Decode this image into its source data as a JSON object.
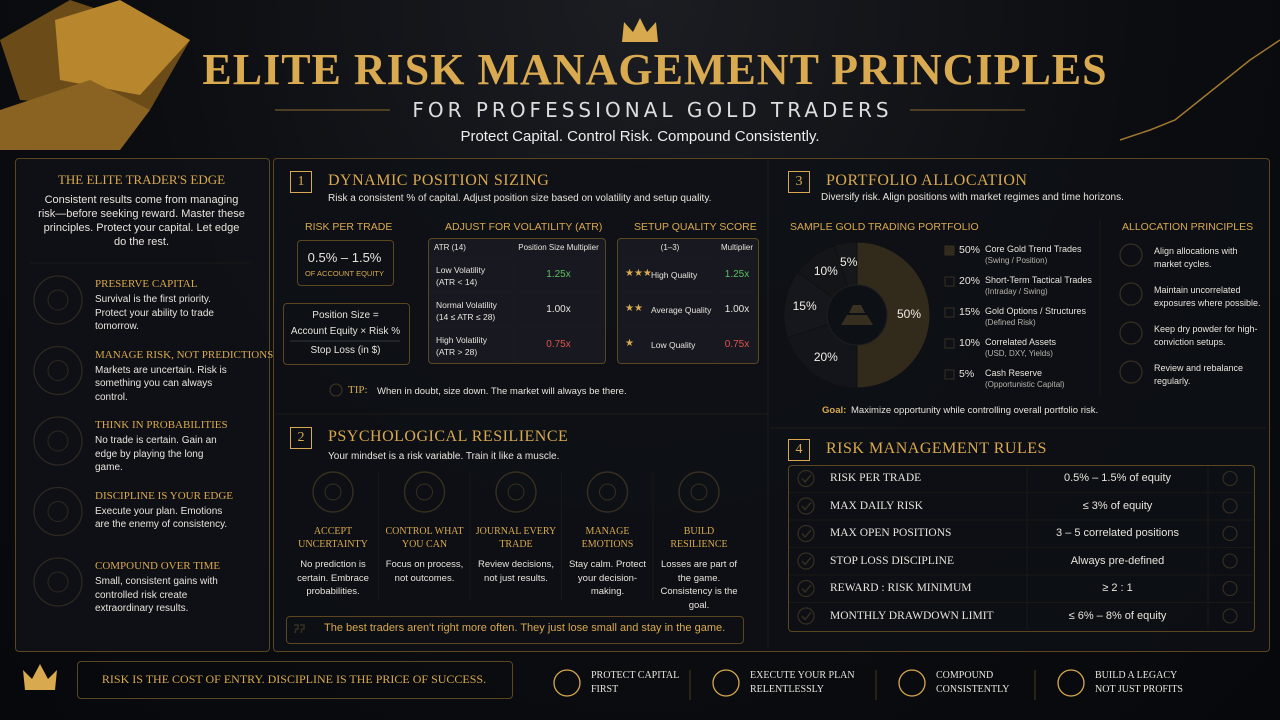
{
  "header": {
    "title": "ELITE RISK MANAGEMENT PRINCIPLES",
    "subtitle": "FOR PROFESSIONAL GOLD TRADERS",
    "tagline": "Protect Capital. Control Risk. Compound Consistently."
  },
  "edge": {
    "title": "THE ELITE TRADER'S EDGE",
    "intro": "Consistent results come from managing risk—before seeking reward. Master these principles. Protect your capital. Let edge do the rest.",
    "items": [
      {
        "title": "PRESERVE CAPITAL",
        "text": "Survival is the first priority. Protect your ability to trade tomorrow."
      },
      {
        "title": "MANAGE RISK, NOT PREDICTIONS",
        "text": "Markets are uncertain. Risk is something you can always control."
      },
      {
        "title": "THINK IN PROBABILITIES",
        "text": "No trade is certain. Gain an edge by playing the long game."
      },
      {
        "title": "DISCIPLINE IS YOUR EDGE",
        "text": "Execute your plan. Emotions are the enemy of consistency."
      },
      {
        "title": "COMPOUND OVER TIME",
        "text": "Small, consistent gains with controlled risk create extraordinary results."
      }
    ]
  },
  "sizing": {
    "number": "1",
    "title": "DYNAMIC POSITION SIZING",
    "subtitle": "Risk a consistent % of capital. Adjust position size based on volatility and setup quality.",
    "risk": {
      "heading": "RISK PER TRADE",
      "value": "0.5% – 1.5%",
      "unit": "OF ACCOUNT EQUITY"
    },
    "formula": {
      "lhs": "Position Size =",
      "numerator": "Account Equity × Risk %",
      "denominator": "Stop Loss (in $)"
    },
    "atr": {
      "heading": "ADJUST FOR VOLATILITY (ATR)",
      "columns": [
        "ATR (14)",
        "Position Size Multiplier"
      ],
      "rows": [
        [
          "Low Volatility",
          "(ATR < 14)",
          "1.25x"
        ],
        [
          "Normal Volatility",
          "(14 ≤ ATR ≤ 28)",
          "1.00x"
        ],
        [
          "High Volatility",
          "(ATR > 28)",
          "0.75x"
        ]
      ]
    },
    "quality": {
      "heading": "SETUP QUALITY SCORE",
      "columns": [
        "(1–3)",
        "Multiplier"
      ],
      "rows": [
        [
          "★★★",
          "High Quality",
          "1.25x"
        ],
        [
          "★★",
          "Average Quality",
          "1.00x"
        ],
        [
          "★",
          "Low Quality",
          "0.75x"
        ]
      ]
    },
    "tip": {
      "label": "TIP:",
      "text": "When in doubt, size down. The market will always be there."
    }
  },
  "psych": {
    "number": "2",
    "title": "PSYCHOLOGICAL RESILIENCE",
    "subtitle": "Your mindset is a risk variable. Train it like a muscle.",
    "items": [
      {
        "title": "ACCEPT UNCERTAINTY",
        "text": "No prediction is certain. Embrace probabilities."
      },
      {
        "title": "CONTROL WHAT YOU CAN",
        "text": "Focus on process, not outcomes."
      },
      {
        "title": "JOURNAL EVERY TRADE",
        "text": "Review decisions, not just results."
      },
      {
        "title": "MANAGE EMOTIONS",
        "text": "Stay calm. Protect your decision-making."
      },
      {
        "title": "BUILD RESILIENCE",
        "text": "Losses are part of the game. Consistency is the goal."
      }
    ],
    "quote": "The best traders aren't right more often. They just lose small and stay in the game."
  },
  "portfolio": {
    "number": "3",
    "title": "PORTFOLIO ALLOCATION",
    "subtitle": "Diversify risk. Align positions with market regimes and time horizons.",
    "chart_heading": "SAMPLE GOLD TRADING PORTFOLIO",
    "slices": [
      {
        "value": 50,
        "label": "50%",
        "name": "Core Gold Trend Trades",
        "note": "(Swing / Position)",
        "color": "#c48f35"
      },
      {
        "value": 20,
        "label": "20%",
        "name": "Short-Term Tactical Trades",
        "note": "(Intraday / Swing)",
        "color": "#2b2b2d"
      },
      {
        "value": 15,
        "label": "15%",
        "name": "Gold Options / Structures",
        "note": "(Defined Risk)",
        "color": "#353537"
      },
      {
        "value": 10,
        "label": "10%",
        "name": "Correlated Assets",
        "note": "(USD, DXY, Yields)",
        "color": "#28282a"
      },
      {
        "value": 5,
        "label": "5%",
        "name": "Cash Reserve",
        "note": "(Opportunistic Capital)",
        "color": "#323234"
      }
    ],
    "principles_heading": "ALLOCATION PRINCIPLES",
    "principles": [
      "Align allocations with market cycles.",
      "Maintain uncorrelated exposures where possible.",
      "Keep dry powder for high-conviction setups.",
      "Review and rebalance regularly."
    ],
    "goal_label": "Goal:",
    "goal": "Maximize opportunity while controlling overall portfolio risk."
  },
  "rules": {
    "number": "4",
    "title": "RISK MANAGEMENT RULES",
    "rows": [
      [
        "RISK PER TRADE",
        "0.5% – 1.5% of equity"
      ],
      [
        "MAX DAILY RISK",
        "≤ 3% of equity"
      ],
      [
        "MAX OPEN POSITIONS",
        "3 – 5 correlated positions"
      ],
      [
        "STOP LOSS DISCIPLINE",
        "Always pre-defined"
      ],
      [
        "REWARD : RISK MINIMUM",
        "≥ 2 : 1"
      ],
      [
        "MONTHLY DRAWDOWN LIMIT",
        "≤ 6% – 8% of equity"
      ]
    ]
  },
  "footer": {
    "motto": "RISK IS THE COST OF ENTRY.  DISCIPLINE IS THE PRICE OF SUCCESS.",
    "items": [
      [
        "PROTECT CAPITAL",
        "FIRST"
      ],
      [
        "EXECUTE YOUR PLAN",
        "RELENTLESSLY"
      ],
      [
        "COMPOUND",
        "CONSISTENTLY"
      ],
      [
        "BUILD A LEGACY",
        "NOT JUST PROFITS"
      ]
    ]
  }
}
